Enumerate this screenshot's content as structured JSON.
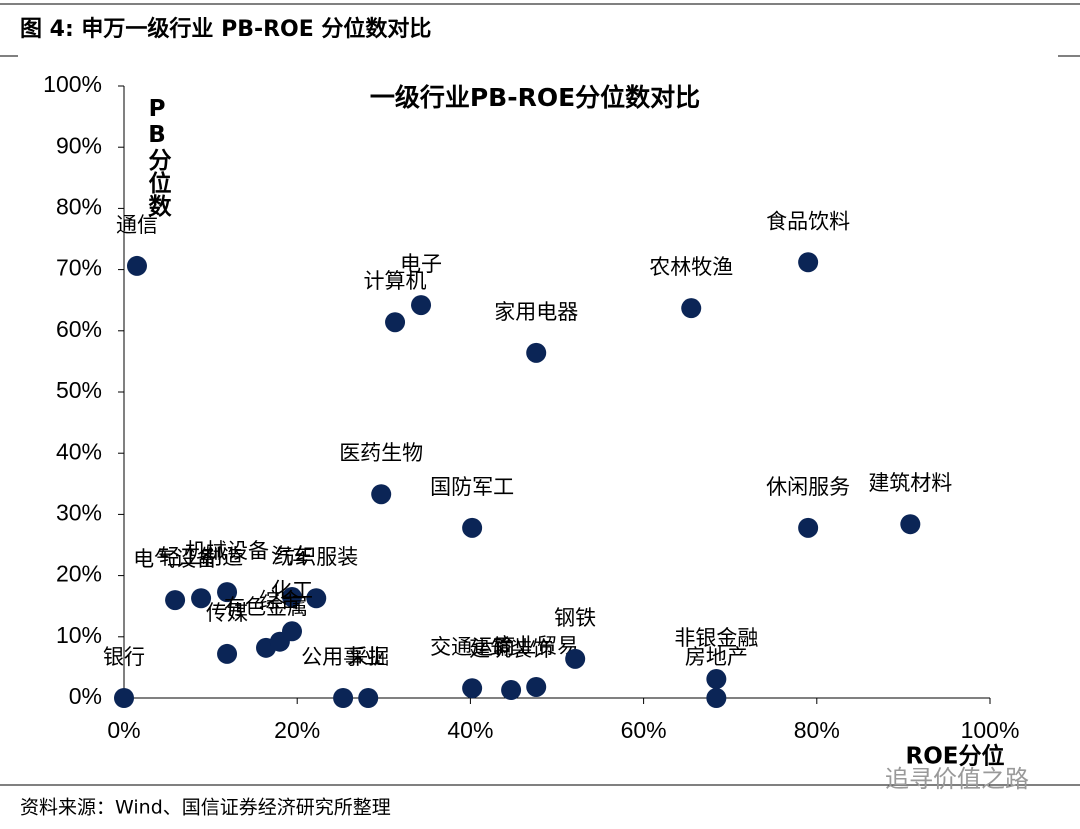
{
  "header": "图 4:  申万一级行业 PB-ROE 分位数对比",
  "source": "资料来源：Wind、国信证券经济研究所整理",
  "watermark": "追寻价值之路",
  "chart_data": {
    "type": "scatter",
    "title": "一级行业PB-ROE分位数对比",
    "x_label": "ROE分位",
    "y_label": "PB分位数",
    "color": "#0b2556",
    "categories": [
      "通信",
      "银行",
      "电子",
      "计算机",
      "家用电器",
      "农林牧渔",
      "食品饮料",
      "医药生物",
      "国防军工",
      "休闲服务",
      "建筑材料",
      "电气设备",
      "轻工制造",
      "机械设备",
      "纺织服装",
      "汽车",
      "有色金属",
      "综合",
      "化工",
      "传媒",
      "公用事业",
      "采掘",
      "交通运输",
      "建筑装饰",
      "商业贸易",
      "钢铁",
      "非银金融",
      "房地产"
    ],
    "x": [
      1.5,
      0,
      34.3,
      31.3,
      47.6,
      65.5,
      79.0,
      29.7,
      40.2,
      79.0,
      90.8,
      5.9,
      8.9,
      11.9,
      22.2,
      19.4,
      16.4,
      18.0,
      19.4,
      11.9,
      25.3,
      28.2,
      40.2,
      44.7,
      47.6,
      52.1,
      68.4,
      68.4
    ],
    "values": [
      70.6,
      0,
      64.2,
      61.4,
      56.4,
      63.7,
      71.2,
      33.3,
      27.8,
      27.8,
      28.4,
      16.0,
      16.3,
      17.3,
      16.3,
      16.5,
      8.2,
      9.2,
      10.9,
      7.2,
      0,
      0,
      1.6,
      1.3,
      1.8,
      6.4,
      3.1,
      0
    ],
    "xlim": [
      0,
      100
    ],
    "ylim": [
      0,
      100
    ],
    "xticks": [
      {
        "value": 0,
        "label": "0%"
      },
      {
        "value": 20,
        "label": "20%"
      },
      {
        "value": 40,
        "label": "40%"
      },
      {
        "value": 60,
        "label": "60%"
      },
      {
        "value": 80,
        "label": "80%"
      },
      {
        "value": 100,
        "label": "100%"
      }
    ],
    "yticks": [
      {
        "value": 0,
        "label": "0%"
      },
      {
        "value": 10,
        "label": "10%"
      },
      {
        "value": 20,
        "label": "20%"
      },
      {
        "value": 30,
        "label": "30%"
      },
      {
        "value": 40,
        "label": "40%"
      },
      {
        "value": 50,
        "label": "50%"
      },
      {
        "value": 60,
        "label": "60%"
      },
      {
        "value": 70,
        "label": "70%"
      },
      {
        "value": 80,
        "label": "80%"
      },
      {
        "value": 90,
        "label": "90%"
      },
      {
        "value": 100,
        "label": "100%"
      }
    ]
  }
}
